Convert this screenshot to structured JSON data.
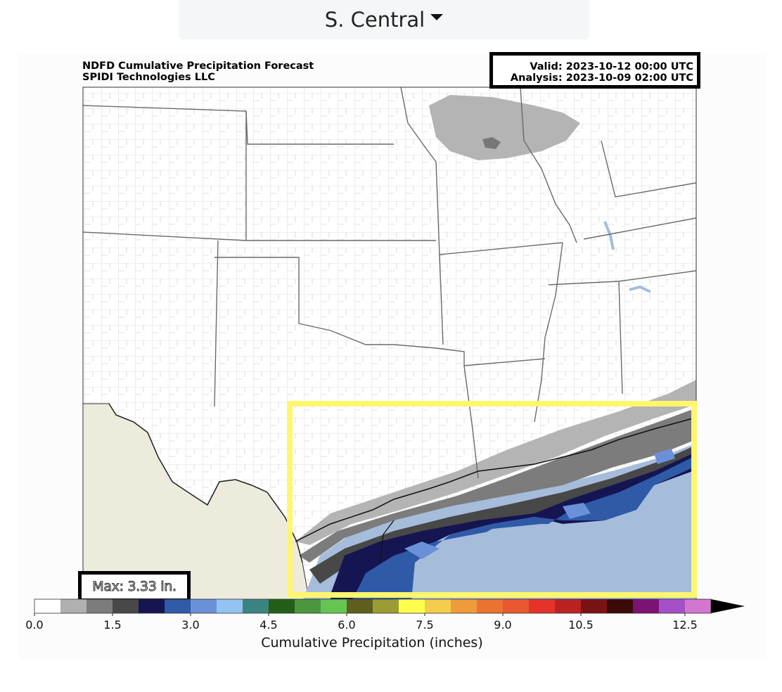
{
  "region_selector": {
    "label": "S. Central"
  },
  "title": {
    "line1": "NDFD Cumulative Precipitation Forecast",
    "line2": "SPIDI Technologies LLC"
  },
  "valid": {
    "line1": "Valid: 2023-10-12 00:00 UTC",
    "line2": "Analysis: 2023-10-09 02:00 UTC"
  },
  "max_label": "Max: 3.33 in.",
  "colorbar": {
    "label": "Cumulative Precipitation (inches)",
    "ticks": [
      "0.0",
      "1.5",
      "3.0",
      "4.5",
      "6.0",
      "7.5",
      "9.0",
      "10.5",
      "12.5"
    ],
    "colors": [
      "#ffffff",
      "#b0b0b0",
      "#7c7c7c",
      "#484848",
      "#151552",
      "#2f5aa8",
      "#6a90d8",
      "#92c3f2",
      "#3c8482",
      "#235e19",
      "#4c9640",
      "#66c551",
      "#5e5e1e",
      "#9c9c34",
      "#fffe4d",
      "#f3cd4b",
      "#ef9b3c",
      "#ea7332",
      "#e9582f",
      "#e3332a",
      "#ba2322",
      "#7a1313",
      "#3c0a09",
      "#7d1276",
      "#a650c8",
      "#d376cf"
    ],
    "extend_color": "#000000"
  },
  "highlight_color": "#fff66e"
}
